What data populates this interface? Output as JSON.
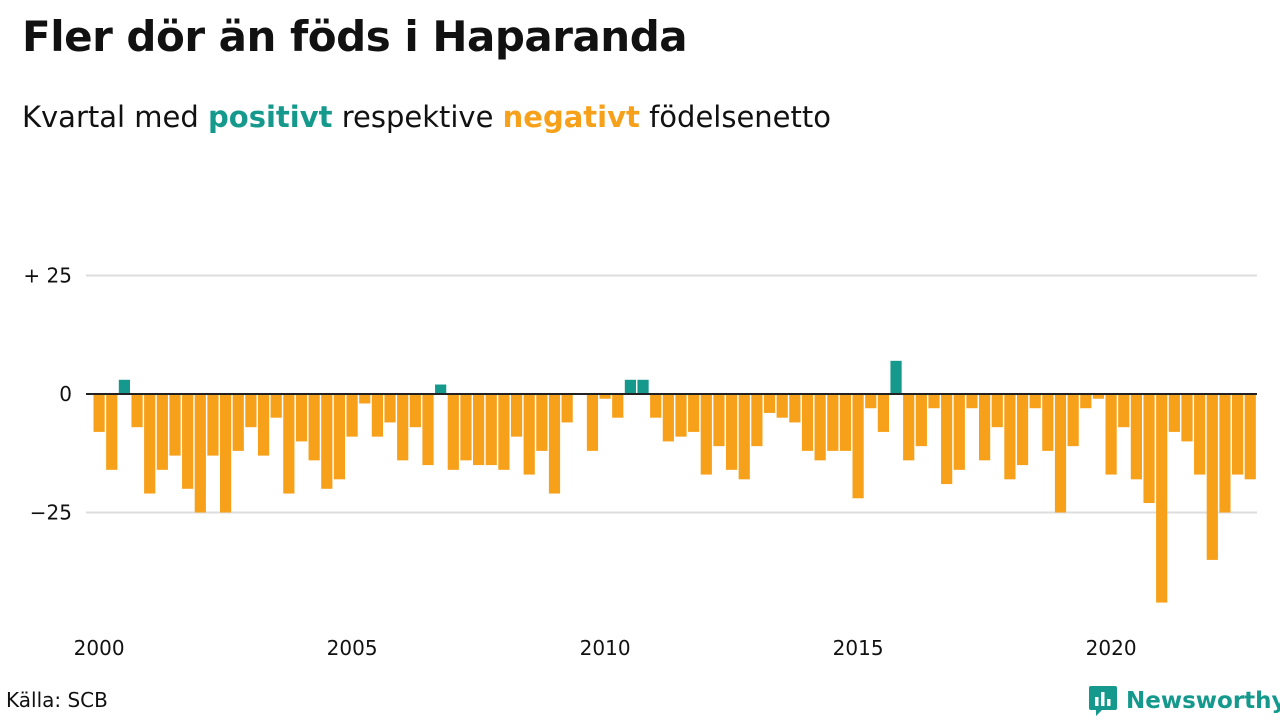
{
  "title": "Fler dör än föds i Haparanda",
  "subtitle": {
    "before": "Kvartal med",
    "positive": "positivt",
    "middle": "respektive",
    "negative": "negativt",
    "after": "födelsenetto"
  },
  "source": "Källa: SCB",
  "brand": {
    "name": "Newsworthy",
    "icon": "newsworthy-logo-icon"
  },
  "colors": {
    "positive": "#14998c",
    "negative": "#f7a11a",
    "grid": "#dddddd",
    "axis": "#222222"
  },
  "chart_data": {
    "type": "bar",
    "x_start": "2000-Q1",
    "period": "quarter",
    "ylim": [
      -44,
      33
    ],
    "yticks": [
      {
        "value": 25,
        "label": "+ 25"
      },
      {
        "value": 0,
        "label": "0"
      },
      {
        "value": -25,
        "label": "−25"
      }
    ],
    "xticks": [
      {
        "quarter_index": 0,
        "label": "2000"
      },
      {
        "quarter_index": 20,
        "label": "2005"
      },
      {
        "quarter_index": 40,
        "label": "2010"
      },
      {
        "quarter_index": 60,
        "label": "2015"
      },
      {
        "quarter_index": 80,
        "label": "2020"
      }
    ],
    "values": [
      -8,
      -16,
      3,
      -7,
      -21,
      -16,
      -13,
      -20,
      -25,
      -13,
      -25,
      -12,
      -7,
      -13,
      -5,
      -21,
      -10,
      -14,
      -20,
      -18,
      -9,
      -2,
      -9,
      -6,
      -14,
      -7,
      -15,
      2,
      -16,
      -14,
      -15,
      -15,
      -16,
      -9,
      -17,
      -12,
      -21,
      -6,
      0,
      -12,
      -1,
      -5,
      3,
      3,
      -5,
      -10,
      -9,
      -8,
      -17,
      -11,
      -16,
      -18,
      -11,
      -4,
      -5,
      -6,
      -12,
      -14,
      -12,
      -12,
      -22,
      -3,
      -8,
      7,
      -14,
      -11,
      -3,
      -19,
      -16,
      -3,
      -14,
      -7,
      -18,
      -15,
      -3,
      -12,
      -25,
      -11,
      -3,
      -1,
      -17,
      -7,
      -18,
      -23,
      -44,
      -8,
      -10,
      -17,
      -35,
      -25,
      -17,
      -18
    ],
    "grid": true,
    "legend": "none"
  }
}
